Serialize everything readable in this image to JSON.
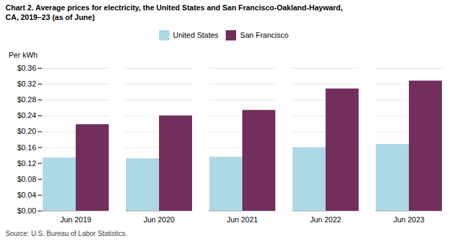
{
  "chart_data": {
    "type": "bar",
    "title": "Chart 2. Average prices for electricity, the United States and San Francisco-Oakland-Hayward,\nCA, 2019–23 (as of June)",
    "ylabel": "Per kWh",
    "caption": "Source: U.S. Bureau of Labor Statistics.",
    "categories": [
      "Jun 2019",
      "Jun 2020",
      "Jun 2021",
      "Jun 2022",
      "Jun 2023"
    ],
    "series": [
      {
        "name": "United States",
        "color": "#add8e6",
        "values": [
          0.134,
          0.132,
          0.136,
          0.16,
          0.168
        ]
      },
      {
        "name": "San Francisco",
        "color": "#722F5B",
        "values": [
          0.218,
          0.24,
          0.254,
          0.308,
          0.328
        ]
      }
    ],
    "ylim": [
      0,
      0.36
    ],
    "yticks": [
      {
        "value": 0.0,
        "label": "$0.00"
      },
      {
        "value": 0.04,
        "label": "$0.04"
      },
      {
        "value": 0.08,
        "label": "$0.08"
      },
      {
        "value": 0.12,
        "label": "$0.12"
      },
      {
        "value": 0.16,
        "label": "$0.16"
      },
      {
        "value": 0.2,
        "label": "$0.20"
      },
      {
        "value": 0.24,
        "label": "$0.24"
      },
      {
        "value": 0.28,
        "label": "$0.28"
      },
      {
        "value": 0.32,
        "label": "$0.32"
      },
      {
        "value": 0.36,
        "label": "$0.36"
      }
    ],
    "grid": true,
    "legend": "top"
  }
}
